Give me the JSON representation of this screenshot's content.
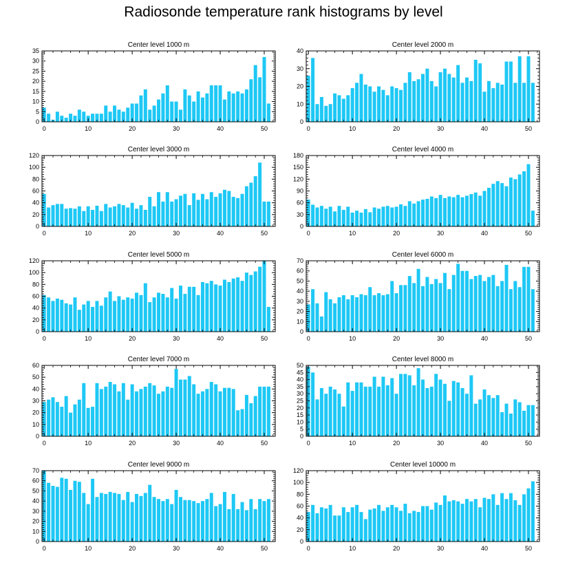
{
  "title": "Radiosonde temperature rank histograms by level",
  "bar_color": "#1ec8f5",
  "chart_data": [
    {
      "type": "bar",
      "title": "Center level 1000 m",
      "xlim": [
        -0.5,
        52.5
      ],
      "ylim": [
        0,
        35
      ],
      "xticks": [
        0,
        10,
        20,
        30,
        40,
        50
      ],
      "yticks": [
        0,
        5,
        10,
        15,
        20,
        25,
        30,
        35
      ],
      "values": [
        7,
        4,
        1,
        5,
        3,
        2,
        4,
        3,
        6,
        5,
        3,
        4,
        4,
        4,
        8,
        5,
        8,
        6,
        5,
        7,
        9,
        9,
        13,
        16,
        6,
        8,
        11,
        14,
        18,
        10,
        10,
        6,
        16,
        13,
        10,
        15,
        12,
        14,
        18,
        18,
        18,
        11,
        15,
        14,
        15,
        14,
        16,
        21,
        28,
        22,
        32,
        9
      ]
    },
    {
      "type": "bar",
      "title": "Center level 2000 m",
      "xlim": [
        -0.5,
        52.5
      ],
      "ylim": [
        0,
        40
      ],
      "xticks": [
        0,
        10,
        20,
        30,
        40,
        50
      ],
      "yticks": [
        0,
        10,
        20,
        30,
        40
      ],
      "values": [
        26,
        36,
        10,
        14,
        9,
        10,
        16,
        15,
        13,
        15,
        19,
        22,
        27,
        21,
        20,
        17,
        20,
        18,
        15,
        20,
        19,
        18,
        22,
        28,
        23,
        24,
        27,
        30,
        23,
        20,
        28,
        30,
        27,
        25,
        32,
        22,
        25,
        23,
        35,
        33,
        17,
        23,
        19,
        22,
        21,
        34,
        34,
        22,
        37,
        22,
        37,
        22
      ]
    },
    {
      "type": "bar",
      "title": "Center level 3000 m",
      "xlim": [
        -0.5,
        52.5
      ],
      "ylim": [
        0,
        120
      ],
      "xticks": [
        0,
        10,
        20,
        30,
        40,
        50
      ],
      "yticks": [
        0,
        20,
        40,
        60,
        80,
        100,
        120
      ],
      "values": [
        55,
        32,
        36,
        38,
        38,
        30,
        31,
        30,
        34,
        26,
        34,
        28,
        35,
        26,
        38,
        32,
        34,
        38,
        36,
        32,
        40,
        30,
        36,
        28,
        50,
        34,
        58,
        42,
        58,
        42,
        46,
        52,
        55,
        36,
        56,
        45,
        55,
        46,
        58,
        50,
        56,
        62,
        60,
        50,
        48,
        55,
        68,
        74,
        85,
        108,
        42,
        42
      ]
    },
    {
      "type": "bar",
      "title": "Center level 4000 m",
      "xlim": [
        -0.5,
        52.5
      ],
      "ylim": [
        0,
        180
      ],
      "xticks": [
        0,
        10,
        20,
        30,
        40,
        50
      ],
      "yticks": [
        0,
        30,
        60,
        90,
        120,
        150,
        180
      ],
      "values": [
        68,
        55,
        48,
        52,
        45,
        50,
        38,
        52,
        42,
        50,
        35,
        40,
        35,
        44,
        36,
        48,
        45,
        50,
        52,
        48,
        50,
        56,
        52,
        64,
        58,
        64,
        68,
        70,
        76,
        72,
        80,
        72,
        76,
        74,
        80,
        74,
        78,
        82,
        86,
        78,
        90,
        98,
        108,
        115,
        110,
        102,
        124,
        120,
        132,
        140,
        158,
        40
      ]
    },
    {
      "type": "bar",
      "title": "Center level 5000 m",
      "xlim": [
        -0.5,
        52.5
      ],
      "ylim": [
        0,
        120
      ],
      "xticks": [
        0,
        10,
        20,
        30,
        40,
        50
      ],
      "yticks": [
        0,
        20,
        40,
        60,
        80,
        100,
        120
      ],
      "values": [
        62,
        58,
        52,
        56,
        54,
        48,
        46,
        58,
        37,
        46,
        52,
        42,
        52,
        44,
        58,
        68,
        52,
        60,
        54,
        58,
        56,
        66,
        62,
        82,
        50,
        58,
        66,
        64,
        58,
        74,
        56,
        78,
        64,
        76,
        76,
        62,
        84,
        82,
        86,
        80,
        78,
        88,
        84,
        90,
        92,
        86,
        100,
        96,
        102,
        110,
        120,
        42
      ]
    },
    {
      "type": "bar",
      "title": "Center level 6000 m",
      "xlim": [
        -0.5,
        52.5
      ],
      "ylim": [
        0,
        70
      ],
      "xticks": [
        0,
        10,
        20,
        30,
        40,
        50
      ],
      "yticks": [
        0,
        10,
        20,
        30,
        40,
        50,
        60,
        70
      ],
      "values": [
        27,
        42,
        28,
        15,
        39,
        32,
        28,
        34,
        36,
        32,
        36,
        34,
        37,
        36,
        44,
        36,
        38,
        36,
        37,
        50,
        38,
        46,
        46,
        55,
        48,
        62,
        45,
        54,
        47,
        52,
        48,
        58,
        42,
        56,
        67,
        60,
        60,
        52,
        55,
        56,
        50,
        54,
        56,
        45,
        50,
        66,
        42,
        50,
        44,
        64,
        64,
        42
      ]
    },
    {
      "type": "bar",
      "title": "Center level 7000 m",
      "xlim": [
        -0.5,
        52.5
      ],
      "ylim": [
        0,
        60
      ],
      "xticks": [
        0,
        10,
        20,
        30,
        40,
        50
      ],
      "yticks": [
        0,
        10,
        20,
        30,
        40,
        50,
        60
      ],
      "values": [
        29,
        31,
        33,
        29,
        25,
        34,
        20,
        27,
        31,
        45,
        24,
        25,
        45,
        40,
        42,
        46,
        44,
        38,
        45,
        31,
        44,
        38,
        40,
        42,
        45,
        43,
        36,
        38,
        42,
        41,
        57,
        48,
        48,
        51,
        44,
        36,
        38,
        40,
        46,
        44,
        38,
        41,
        41,
        40,
        22,
        23,
        35,
        28,
        34,
        42,
        42,
        42
      ]
    },
    {
      "type": "bar",
      "title": "Center level 8000 m",
      "xlim": [
        -0.5,
        52.5
      ],
      "ylim": [
        0,
        50
      ],
      "xticks": [
        0,
        10,
        20,
        30,
        40,
        50
      ],
      "yticks": [
        0,
        5,
        10,
        15,
        20,
        25,
        30,
        35,
        40,
        45,
        50
      ],
      "values": [
        49,
        45,
        26,
        34,
        30,
        35,
        33,
        30,
        21,
        38,
        32,
        38,
        38,
        35,
        35,
        42,
        35,
        42,
        36,
        41,
        30,
        44,
        44,
        43,
        36,
        48,
        40,
        34,
        35,
        44,
        40,
        37,
        25,
        39,
        38,
        34,
        30,
        43,
        23,
        26,
        33,
        29,
        27,
        29,
        17,
        23,
        16,
        26,
        24,
        18,
        22,
        22
      ]
    },
    {
      "type": "bar",
      "title": "Center level 9000 m",
      "xlim": [
        -0.5,
        52.5
      ],
      "ylim": [
        0,
        70
      ],
      "xticks": [
        0,
        10,
        20,
        30,
        40,
        50
      ],
      "yticks": [
        0,
        10,
        20,
        30,
        40,
        50,
        60,
        70
      ],
      "values": [
        70,
        58,
        55,
        54,
        63,
        62,
        51,
        60,
        59,
        48,
        37,
        62,
        44,
        48,
        47,
        49,
        48,
        47,
        41,
        49,
        39,
        47,
        45,
        48,
        56,
        44,
        42,
        40,
        42,
        37,
        51,
        44,
        41,
        41,
        40,
        38,
        40,
        42,
        48,
        35,
        37,
        49,
        32,
        47,
        32,
        39,
        31,
        42,
        32,
        42,
        40,
        42
      ]
    },
    {
      "type": "bar",
      "title": "Center level 10000 m",
      "xlim": [
        -0.5,
        52.5
      ],
      "ylim": [
        0,
        120
      ],
      "xticks": [
        0,
        10,
        20,
        30,
        40,
        50
      ],
      "yticks": [
        0,
        20,
        40,
        60,
        80,
        100,
        120
      ],
      "values": [
        50,
        62,
        48,
        58,
        56,
        62,
        44,
        44,
        58,
        50,
        58,
        62,
        50,
        38,
        54,
        56,
        62,
        52,
        58,
        62,
        58,
        52,
        64,
        48,
        52,
        50,
        60,
        60,
        54,
        66,
        62,
        78,
        68,
        70,
        68,
        64,
        72,
        68,
        72,
        58,
        74,
        72,
        80,
        62,
        82,
        72,
        82,
        70,
        62,
        80,
        90,
        102
      ]
    }
  ]
}
